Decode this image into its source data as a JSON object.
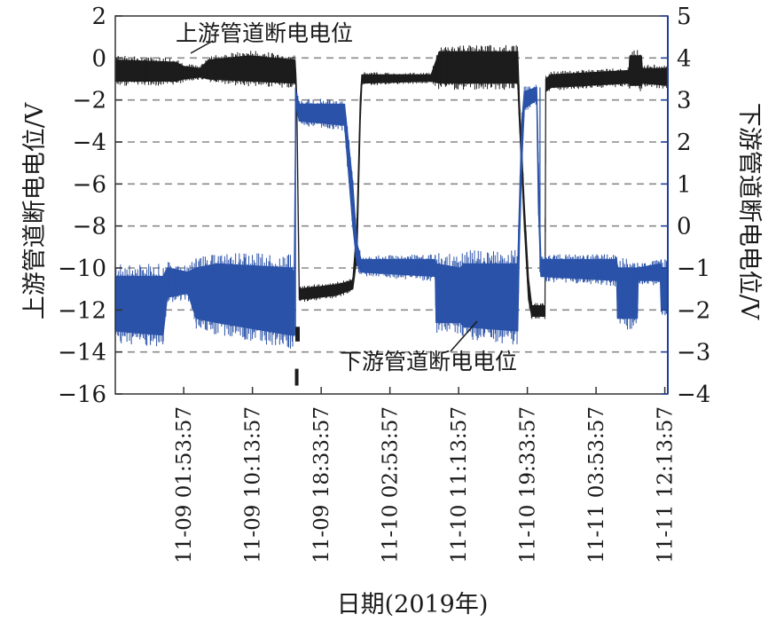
{
  "chart_data": {
    "type": "line",
    "xlabel": "日期(2019年)",
    "ylabel_left": "上游管道断电电位/V",
    "ylabel_right": "下游管道断电电位/V",
    "x_tick_labels": [
      "11-09 01:53:57",
      "11-09 10:13:57",
      "11-09 18:33:57",
      "11-10 02:53:57",
      "11-10 11:13:57",
      "11-10 19:33:57",
      "11-11 03:53:57",
      "11-11 12:13:57"
    ],
    "x_tick_hours": [
      0,
      8.333,
      16.667,
      25,
      33.333,
      41.667,
      50,
      58.333
    ],
    "xlim_hours": [
      -8.3,
      58.7
    ],
    "ylim_left": [
      -16,
      2
    ],
    "ylim_right": [
      -4,
      5
    ],
    "y_ticks_left": [
      -16,
      -14,
      -12,
      -10,
      -8,
      -6,
      -4,
      -2,
      0,
      2
    ],
    "y_ticks_right": [
      -4,
      -3,
      -2,
      -1,
      0,
      1,
      2,
      3,
      4,
      5
    ],
    "y_tick_labels_left": [
      "−16",
      "−14",
      "−12",
      "−10",
      "−8",
      "−6",
      "−4",
      "−2",
      "0",
      "2"
    ],
    "y_tick_labels_right": [
      "−4",
      "−3",
      "−2",
      "−1",
      "0",
      "1",
      "2",
      "3",
      "4",
      "5"
    ],
    "grid": "horizontal-dashed",
    "annotations": [
      {
        "text": "上游管道断电电位",
        "series": "upstream"
      },
      {
        "text": "下游管道断电电位",
        "series": "downstream"
      }
    ],
    "series": [
      {
        "key": "upstream",
        "axis": "left",
        "color": "#1c1c1c",
        "band": [
          {
            "x": -8.3,
            "hi": -0.1,
            "lo": -1.1
          },
          {
            "x": -1.0,
            "hi": -0.2,
            "lo": -1.1
          },
          {
            "x": 0.0,
            "hi": -0.4,
            "lo": -1.0
          },
          {
            "x": 2.0,
            "hi": -0.5,
            "lo": -0.9
          },
          {
            "x": 3.0,
            "hi": -0.1,
            "lo": -1.0
          },
          {
            "x": 8.0,
            "hi": 0.1,
            "lo": -1.1
          },
          {
            "x": 13.5,
            "hi": -0.1,
            "lo": -1.2
          },
          {
            "x": 13.6,
            "hi": -0.8,
            "lo": -1.3
          },
          {
            "x": 13.7,
            "hi": -1.8,
            "lo": -2.4
          },
          {
            "x": 14.0,
            "hi": -11.0,
            "lo": -11.5
          },
          {
            "x": 18.5,
            "hi": -10.8,
            "lo": -11.3
          },
          {
            "x": 20.5,
            "hi": -10.6,
            "lo": -11.0
          },
          {
            "x": 21.0,
            "hi": -8.0,
            "lo": -9.5
          },
          {
            "x": 21.4,
            "hi": -2.0,
            "lo": -3.0
          },
          {
            "x": 21.6,
            "hi": -0.8,
            "lo": -1.2
          },
          {
            "x": 30.0,
            "hi": -0.8,
            "lo": -1.1
          },
          {
            "x": 31.0,
            "hi": 0.3,
            "lo": -1.2
          },
          {
            "x": 40.5,
            "hi": 0.3,
            "lo": -1.2
          },
          {
            "x": 40.7,
            "hi": -2.0,
            "lo": -3.0
          },
          {
            "x": 41.3,
            "hi": -7.0,
            "lo": -8.0
          },
          {
            "x": 41.8,
            "hi": -10.5,
            "lo": -11.5
          },
          {
            "x": 42.2,
            "hi": -11.8,
            "lo": -12.3
          },
          {
            "x": 43.8,
            "hi": -11.8,
            "lo": -12.3
          },
          {
            "x": 43.9,
            "hi": -1.0,
            "lo": -1.6
          },
          {
            "x": 44.5,
            "hi": -0.8,
            "lo": -1.4
          },
          {
            "x": 54.0,
            "hi": -0.6,
            "lo": -1.2
          },
          {
            "x": 54.1,
            "hi": 0.1,
            "lo": -1.3
          },
          {
            "x": 55.5,
            "hi": 0.1,
            "lo": -1.3
          },
          {
            "x": 55.6,
            "hi": -0.5,
            "lo": -1.2
          },
          {
            "x": 58.7,
            "hi": -0.5,
            "lo": -1.3
          }
        ]
      },
      {
        "key": "downstream",
        "axis": "right",
        "color": "#2a52a8",
        "band": [
          {
            "x": -8.3,
            "hi": -1.2,
            "lo": -2.5
          },
          {
            "x": -2.5,
            "hi": -1.2,
            "lo": -2.6
          },
          {
            "x": -2.0,
            "hi": -1.0,
            "lo": -1.7
          },
          {
            "x": 0.5,
            "hi": -1.1,
            "lo": -1.6
          },
          {
            "x": 1.5,
            "hi": -1.0,
            "lo": -2.2
          },
          {
            "x": 4.0,
            "hi": -0.9,
            "lo": -2.3
          },
          {
            "x": 13.0,
            "hi": -1.0,
            "lo": -2.6
          },
          {
            "x": 13.4,
            "hi": -1.1,
            "lo": -2.6
          },
          {
            "x": 13.6,
            "hi": 3.2,
            "lo": 2.9
          },
          {
            "x": 14.0,
            "hi": 2.9,
            "lo": 2.5
          },
          {
            "x": 19.5,
            "hi": 2.9,
            "lo": 2.4
          },
          {
            "x": 20.5,
            "hi": 1.0,
            "lo": 0.0
          },
          {
            "x": 21.0,
            "hi": -0.4,
            "lo": -0.9
          },
          {
            "x": 21.5,
            "hi": -0.8,
            "lo": -1.1
          },
          {
            "x": 30.5,
            "hi": -0.8,
            "lo": -1.2
          },
          {
            "x": 30.6,
            "hi": -0.9,
            "lo": -2.3
          },
          {
            "x": 33.5,
            "hi": -1.0,
            "lo": -2.3
          },
          {
            "x": 34.0,
            "hi": -0.9,
            "lo": -2.4
          },
          {
            "x": 40.5,
            "hi": -0.9,
            "lo": -2.5
          },
          {
            "x": 40.7,
            "hi": 0.5,
            "lo": -0.5
          },
          {
            "x": 41.0,
            "hi": 2.5,
            "lo": 1.5
          },
          {
            "x": 41.3,
            "hi": 3.2,
            "lo": 2.8
          },
          {
            "x": 42.8,
            "hi": 3.3,
            "lo": 3.0
          },
          {
            "x": 43.0,
            "hi": 1.5,
            "lo": 0.5
          },
          {
            "x": 43.3,
            "hi": -0.8,
            "lo": -1.2
          },
          {
            "x": 52.5,
            "hi": -0.8,
            "lo": -1.3
          },
          {
            "x": 52.6,
            "hi": -1.0,
            "lo": -2.2
          },
          {
            "x": 55.0,
            "hi": -1.0,
            "lo": -2.2
          },
          {
            "x": 55.1,
            "hi": -1.0,
            "lo": -1.3
          },
          {
            "x": 57.8,
            "hi": -0.9,
            "lo": -1.3
          },
          {
            "x": 57.9,
            "hi": -1.0,
            "lo": -2.0
          },
          {
            "x": 58.7,
            "hi": -1.0,
            "lo": -2.0
          }
        ]
      }
    ]
  }
}
